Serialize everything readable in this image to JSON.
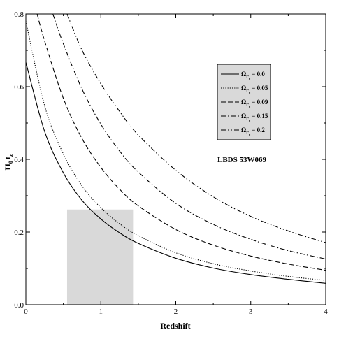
{
  "chart_data": {
    "type": "line",
    "xlabel": "Redshift",
    "ylabel": "H₀ tₓ",
    "ylabel_main": "H",
    "ylabel_sub0": "0",
    "ylabel_t": "t",
    "ylabel_subz": "z",
    "xlim": [
      0,
      4
    ],
    "ylim": [
      0,
      0.8
    ],
    "xticks": [
      0,
      1,
      2,
      3,
      4
    ],
    "xtick_labels": [
      "0",
      "1",
      "2",
      "3",
      "4"
    ],
    "yticks": [
      0,
      0.2,
      0.4,
      0.6,
      0.8
    ],
    "ytick_labels": [
      "0.0",
      "0.2",
      "0.4",
      "0.6",
      "0.8"
    ],
    "grid": false,
    "legend_position": "top-right",
    "shaded_region": {
      "x": [
        0.55,
        1.43
      ],
      "y": [
        0,
        0.262
      ],
      "color": "#d9d9d9"
    },
    "annotation": "LBDS 53W069",
    "series": [
      {
        "name": "Ω_{Γc} = 0.0",
        "legend_symbol": "Ω",
        "legend_sub": "Γ",
        "legend_sub2": "c",
        "legend_value": "= 0.0",
        "style": "solid",
        "x": [
          0,
          0.25,
          0.5,
          0.75,
          1.0,
          1.25,
          1.5,
          2.0,
          2.5,
          3.0,
          3.5,
          4.0
        ],
        "y": [
          0.667,
          0.477,
          0.363,
          0.287,
          0.236,
          0.198,
          0.169,
          0.128,
          0.101,
          0.083,
          0.07,
          0.059
        ]
      },
      {
        "name": "Ω_{Γc} = 0.05",
        "legend_symbol": "Ω",
        "legend_sub": "Γ",
        "legend_sub2": "c",
        "legend_value": "= 0.05",
        "style": "dotted",
        "x": [
          0,
          0.25,
          0.5,
          0.75,
          1.0,
          1.25,
          1.5,
          2.0,
          2.5,
          3.0,
          3.5,
          4.0
        ],
        "y": [
          0.78,
          0.548,
          0.415,
          0.327,
          0.267,
          0.223,
          0.19,
          0.143,
          0.113,
          0.093,
          0.078,
          0.067
        ]
      },
      {
        "name": "Ω_{Γc} = 0.09",
        "legend_symbol": "Ω",
        "legend_sub": "Γ",
        "legend_sub2": "c",
        "legend_value": "= 0.09",
        "style": "dashed",
        "x": [
          0.15,
          0.25,
          0.5,
          0.75,
          1.0,
          1.25,
          1.5,
          2.0,
          2.5,
          3.0,
          3.5,
          4.0
        ],
        "y": [
          0.8,
          0.726,
          0.568,
          0.457,
          0.378,
          0.318,
          0.272,
          0.207,
          0.164,
          0.134,
          0.112,
          0.095
        ]
      },
      {
        "name": "Ω_{Γc} = 0.15",
        "legend_symbol": "Ω",
        "legend_sub": "Γ",
        "legend_sub2": "c",
        "legend_value": "= 0.15",
        "style": "dashdot",
        "x": [
          0.36,
          0.5,
          0.75,
          1.0,
          1.25,
          1.5,
          2.0,
          2.5,
          3.0,
          3.5,
          4.0
        ],
        "y": [
          0.8,
          0.718,
          0.593,
          0.497,
          0.423,
          0.365,
          0.279,
          0.221,
          0.18,
          0.149,
          0.126
        ]
      },
      {
        "name": "Ω_{Γc} = 0.2",
        "legend_symbol": "Ω",
        "legend_sub": "Γ",
        "legend_sub2": "c",
        "legend_value": "= 0.2",
        "style": "dashdotdot",
        "x": [
          0.55,
          0.75,
          1.0,
          1.25,
          1.5,
          2.0,
          2.5,
          3.0,
          3.5,
          4.0
        ],
        "y": [
          0.8,
          0.7,
          0.608,
          0.532,
          0.467,
          0.37,
          0.297,
          0.243,
          0.203,
          0.171
        ]
      }
    ]
  }
}
